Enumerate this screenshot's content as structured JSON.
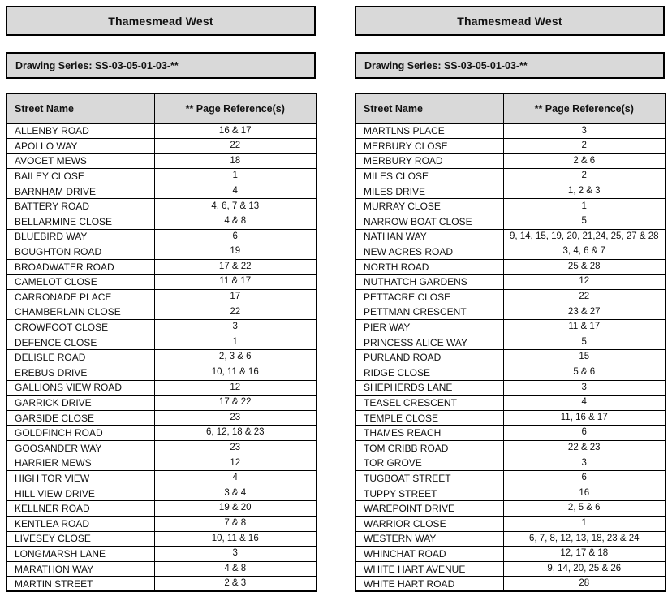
{
  "page": {
    "background_color": "#ffffff",
    "panel_fill_color": "#d9d9d9",
    "border_color": "#000000"
  },
  "panels": [
    {
      "title": "Thamesmead West",
      "series_label": "Drawing Series: SS-03-05-01-03-**",
      "columns": [
        "Street Name",
        "** Page Reference(s)"
      ],
      "rows": [
        {
          "street": "ALLENBY ROAD",
          "pages": "16 & 17"
        },
        {
          "street": "APOLLO WAY",
          "pages": "22"
        },
        {
          "street": "AVOCET MEWS",
          "pages": "18"
        },
        {
          "street": "BAILEY CLOSE",
          "pages": "1"
        },
        {
          "street": "BARNHAM DRIVE",
          "pages": "4"
        },
        {
          "street": "BATTERY ROAD",
          "pages": "4, 6, 7 & 13"
        },
        {
          "street": "BELLARMINE CLOSE",
          "pages": "4 & 8"
        },
        {
          "street": "BLUEBIRD WAY",
          "pages": "6"
        },
        {
          "street": "BOUGHTON ROAD",
          "pages": "19"
        },
        {
          "street": "BROADWATER ROAD",
          "pages": "17 & 22"
        },
        {
          "street": "CAMELOT CLOSE",
          "pages": "11 & 17"
        },
        {
          "street": "CARRONADE PLACE",
          "pages": "17"
        },
        {
          "street": "CHAMBERLAIN CLOSE",
          "pages": "22"
        },
        {
          "street": "CROWFOOT CLOSE",
          "pages": "3"
        },
        {
          "street": "DEFENCE CLOSE",
          "pages": "1"
        },
        {
          "street": "DELISLE ROAD",
          "pages": "2, 3 & 6"
        },
        {
          "street": "EREBUS DRIVE",
          "pages": "10, 11 & 16"
        },
        {
          "street": "GALLIONS VIEW ROAD",
          "pages": "12"
        },
        {
          "street": "GARRICK DRIVE",
          "pages": "17 & 22"
        },
        {
          "street": "GARSIDE CLOSE",
          "pages": "23"
        },
        {
          "street": "GOLDFINCH ROAD",
          "pages": "6, 12, 18 & 23"
        },
        {
          "street": "GOOSANDER WAY",
          "pages": "23"
        },
        {
          "street": "HARRIER MEWS",
          "pages": "12"
        },
        {
          "street": "HIGH TOR VIEW",
          "pages": "4"
        },
        {
          "street": "HILL VIEW DRIVE",
          "pages": "3 & 4"
        },
        {
          "street": "KELLNER ROAD",
          "pages": "19 & 20"
        },
        {
          "street": "KENTLEA ROAD",
          "pages": "7 & 8"
        },
        {
          "street": "LIVESEY CLOSE",
          "pages": "10, 11 & 16"
        },
        {
          "street": "LONGMARSH LANE",
          "pages": "3"
        },
        {
          "street": "MARATHON WAY",
          "pages": "4 & 8"
        },
        {
          "street": "MARTIN STREET",
          "pages": "2 & 3"
        }
      ]
    },
    {
      "title": "Thamesmead West",
      "series_label": "Drawing Series: SS-03-05-01-03-**",
      "columns": [
        "Street Name",
        "** Page Reference(s)"
      ],
      "rows": [
        {
          "street": "MARTLNS PLACE",
          "pages": "3"
        },
        {
          "street": "MERBURY CLOSE",
          "pages": "2"
        },
        {
          "street": "MERBURY ROAD",
          "pages": "2 & 6"
        },
        {
          "street": "MILES CLOSE",
          "pages": "2"
        },
        {
          "street": "MILES DRIVE",
          "pages": "1, 2 & 3"
        },
        {
          "street": "MURRAY CLOSE",
          "pages": "1"
        },
        {
          "street": "NARROW BOAT CLOSE",
          "pages": "5"
        },
        {
          "street": "NATHAN WAY",
          "pages": "9, 14, 15, 19, 20, 21,24, 25, 27 & 28"
        },
        {
          "street": "NEW ACRES ROAD",
          "pages": "3, 4, 6 & 7"
        },
        {
          "street": "NORTH ROAD",
          "pages": "25 & 28"
        },
        {
          "street": "NUTHATCH GARDENS",
          "pages": "12"
        },
        {
          "street": "PETTACRE CLOSE",
          "pages": "22"
        },
        {
          "street": "PETTMAN CRESCENT",
          "pages": "23 & 27"
        },
        {
          "street": "PIER WAY",
          "pages": "11 & 17"
        },
        {
          "street": "PRINCESS ALICE WAY",
          "pages": "5"
        },
        {
          "street": "PURLAND ROAD",
          "pages": "15"
        },
        {
          "street": "RIDGE CLOSE",
          "pages": "5 & 6"
        },
        {
          "street": "SHEPHERDS LANE",
          "pages": "3"
        },
        {
          "street": "TEASEL CRESCENT",
          "pages": "4"
        },
        {
          "street": "TEMPLE CLOSE",
          "pages": "11, 16 & 17"
        },
        {
          "street": "THAMES REACH",
          "pages": "6"
        },
        {
          "street": "TOM CRIBB ROAD",
          "pages": "22 & 23"
        },
        {
          "street": "TOR GROVE",
          "pages": "3"
        },
        {
          "street": "TUGBOAT STREET",
          "pages": "6"
        },
        {
          "street": "TUPPY STREET",
          "pages": "16"
        },
        {
          "street": "WAREPOINT DRIVE",
          "pages": "2, 5 & 6"
        },
        {
          "street": "WARRIOR CLOSE",
          "pages": "1"
        },
        {
          "street": "WESTERN WAY",
          "pages": "6, 7, 8, 12, 13, 18, 23 & 24"
        },
        {
          "street": "WHINCHAT ROAD",
          "pages": "12, 17 & 18"
        },
        {
          "street": "WHITE HART AVENUE",
          "pages": "9, 14, 20, 25 & 26"
        },
        {
          "street": "WHITE HART ROAD",
          "pages": "28"
        }
      ]
    }
  ]
}
